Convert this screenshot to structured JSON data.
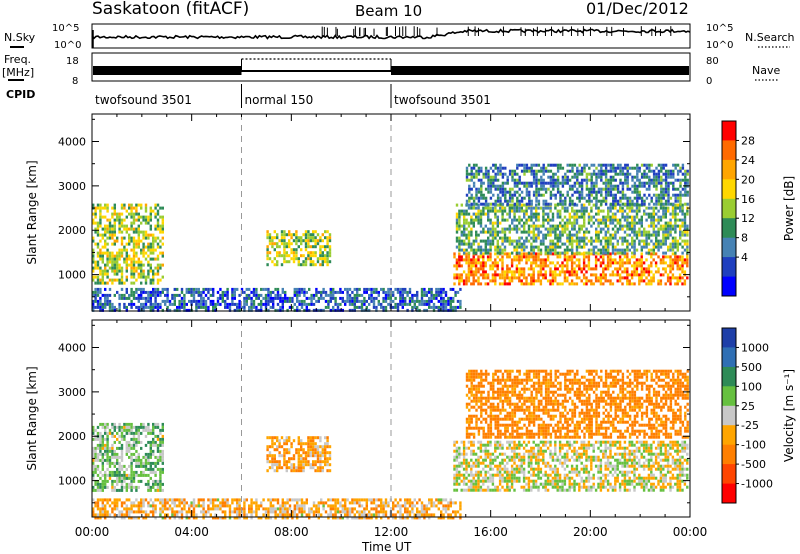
{
  "header": {
    "station": "Saskatoon (fitACF)",
    "beam": "Beam 10",
    "date": "01/Dec/2012"
  },
  "side_labels": {
    "nsky": "N.Sky",
    "freq": "Freq.",
    "freq_unit": "[MHz]",
    "cpid": "CPID",
    "nsearch": "N.Search",
    "nave": "Nave"
  },
  "small_panels": {
    "noise_ticks_left": [
      "10^5",
      "10^0"
    ],
    "noise_ticks_right": [
      "10^5",
      "10^0"
    ],
    "freq_ticks_left": [
      "18",
      "8"
    ],
    "nave_ticks_right": [
      "80",
      "0"
    ]
  },
  "cpid_segments": [
    {
      "label": "twofsound 3501",
      "start_hour": 0,
      "end_hour": 6
    },
    {
      "label": "normal 150",
      "start_hour": 6,
      "end_hour": 12
    },
    {
      "label": "twofsound 3501",
      "start_hour": 12,
      "end_hour": 24
    }
  ],
  "x_axis": {
    "label": "Time UT",
    "range_hours": [
      0,
      24
    ],
    "ticks": [
      "00:00",
      "04:00",
      "08:00",
      "12:00",
      "16:00",
      "20:00",
      "00:00"
    ],
    "minor_tick_hours": 1
  },
  "panels": [
    {
      "id": "power",
      "ylabel": "Slant Range [km]",
      "yrange_km": [
        180,
        4620
      ],
      "yticks": [
        "1000",
        "2000",
        "3000",
        "4000"
      ],
      "colorbar": {
        "label": "Power [dB]",
        "ticks": [
          "28",
          "24",
          "20",
          "16",
          "12",
          "8",
          "4"
        ],
        "colors": [
          "#ff0000",
          "#ff6a00",
          "#ffa500",
          "#ffd700",
          "#9acd32",
          "#2e8b57",
          "#4682b4",
          "#1f3fbf",
          "#0000ff"
        ]
      }
    },
    {
      "id": "velocity",
      "ylabel": "Slant Range [km]",
      "yrange_km": [
        180,
        4620
      ],
      "yticks": [
        "1000",
        "2000",
        "3000",
        "4000"
      ],
      "colorbar": {
        "label": "Velocity [m s⁻¹]",
        "ticks": [
          "1000",
          "500",
          "100",
          "25",
          "-25",
          "-100",
          "-500",
          "-1000"
        ],
        "colors": [
          "#1e3fa8",
          "#2f6fb4",
          "#2e8b57",
          "#66c040",
          "#c8c8c8",
          "#ffa500",
          "#ff7f00",
          "#ff4500",
          "#ff0000"
        ]
      }
    }
  ],
  "chart_data": {
    "type": "heatmap",
    "title": "Saskatoon (fitACF)  Beam 10  01/Dec/2012",
    "xlabel": "Time UT",
    "ylabel": "Slant Range [km]",
    "x_range_hours": [
      0,
      24
    ],
    "y_range_km": [
      180,
      4620
    ],
    "mode_change_hours": [
      6,
      12
    ],
    "power_regions": [
      {
        "t0": 0.0,
        "t1": 2.8,
        "r0": 800,
        "r1": 2600,
        "level_db": 18
      },
      {
        "t0": 7.0,
        "t1": 9.6,
        "r0": 1200,
        "r1": 2000,
        "level_db": 18
      },
      {
        "t0": 0.0,
        "t1": 14.8,
        "r0": 180,
        "r1": 700,
        "level_db": 8
      },
      {
        "t0": 14.5,
        "t1": 23.9,
        "r0": 800,
        "r1": 1500,
        "level_db": 26
      },
      {
        "t0": 14.6,
        "t1": 23.9,
        "r0": 1500,
        "r1": 2600,
        "level_db": 14
      },
      {
        "t0": 15.0,
        "t1": 23.9,
        "r0": 2600,
        "r1": 3500,
        "level_db": 10
      }
    ],
    "velocity_regions": [
      {
        "t0": 0.0,
        "t1": 2.8,
        "r0": 800,
        "r1": 2300,
        "velocity": 60
      },
      {
        "t0": 7.0,
        "t1": 9.6,
        "r0": 1200,
        "r1": 2000,
        "velocity": -80
      },
      {
        "t0": 0.0,
        "t1": 14.8,
        "r0": 180,
        "r1": 600,
        "velocity": -60
      },
      {
        "t0": 14.5,
        "t1": 23.9,
        "r0": 800,
        "r1": 1900,
        "velocity": 0
      },
      {
        "t0": 15.0,
        "t1": 23.9,
        "r0": 2000,
        "r1": 3500,
        "velocity": -150
      }
    ]
  }
}
